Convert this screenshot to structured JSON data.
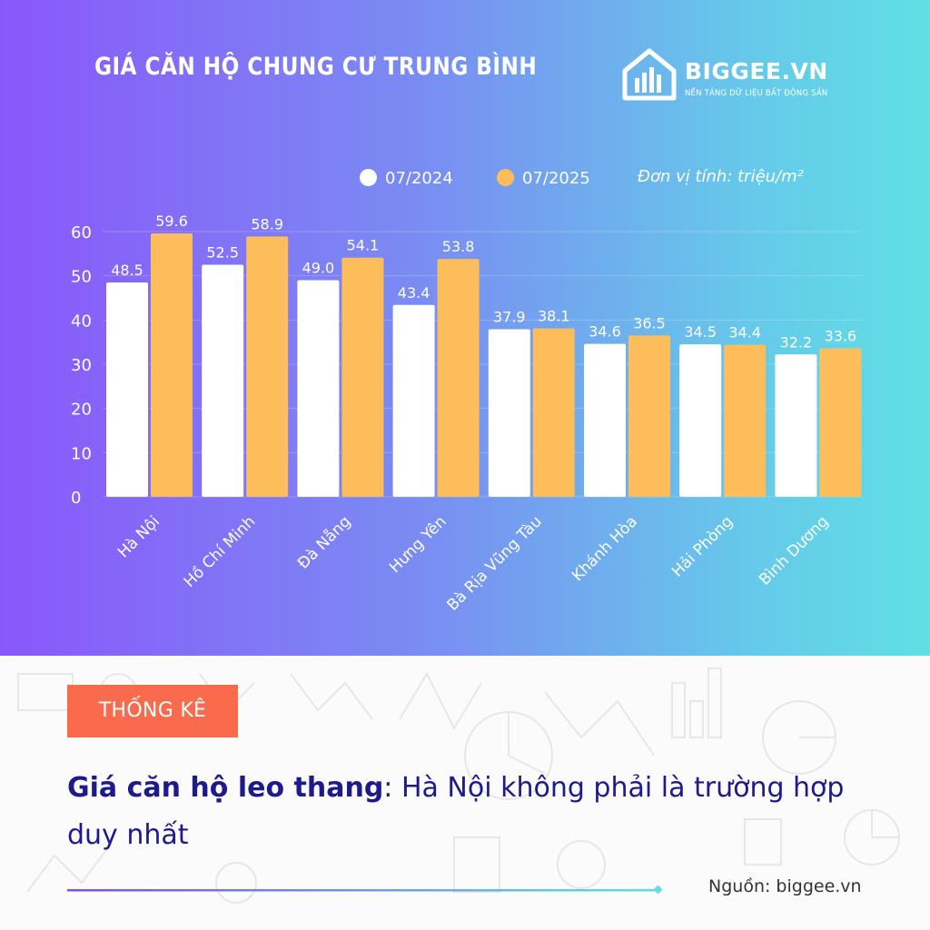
{
  "header": {
    "title": "GIÁ CĂN HỘ CHUNG CƯ TRUNG BÌNH",
    "brand": "BIGGEE.VN",
    "brand_tagline": "NỀN TẢNG DỮ LIỆU BẤT ĐỘNG SẢN",
    "unit_note": "Đơn vị tính: triệu/m²"
  },
  "colors": {
    "series_2024": "#ffffff",
    "series_2025": "#fdbd5a",
    "badge": "#fa6b4e",
    "headline": "#1e1a8c"
  },
  "chart_data": {
    "type": "bar",
    "categories": [
      "Hà Nội",
      "Hồ Chí Minh",
      "Đà Nẵng",
      "Hưng Yên",
      "Bà Rịa Vũng Tàu",
      "Khánh Hòa",
      "Hải Phòng",
      "Bình Dương"
    ],
    "series": [
      {
        "name": "07/2024",
        "values": [
          48.5,
          52.5,
          49.0,
          43.4,
          37.9,
          34.6,
          34.5,
          32.2
        ]
      },
      {
        "name": "07/2025",
        "values": [
          59.6,
          58.9,
          54.1,
          53.8,
          38.1,
          36.5,
          34.4,
          33.6
        ]
      }
    ],
    "value_labels": [
      [
        "48.5",
        "52.5",
        "49.0",
        "43.4",
        "37.9",
        "34.6",
        "34.5",
        "32.2"
      ],
      [
        "59.6",
        "58.9",
        "54.1",
        "53.8",
        "38.1",
        "36.5",
        "34.4",
        "33.6"
      ]
    ],
    "yticks": [
      "0",
      "10",
      "20",
      "30",
      "40",
      "50",
      "60"
    ],
    "ylim": [
      0,
      60
    ],
    "grid": true,
    "legend": "top-right",
    "xlabel": "",
    "ylabel": ""
  },
  "footer": {
    "badge": "THỐNG KÊ",
    "headline_bold": "Giá căn hộ leo thang",
    "headline_rest": ": Hà Nội không phải là trường hợp duy nhất",
    "source": "Nguồn: biggee.vn"
  }
}
